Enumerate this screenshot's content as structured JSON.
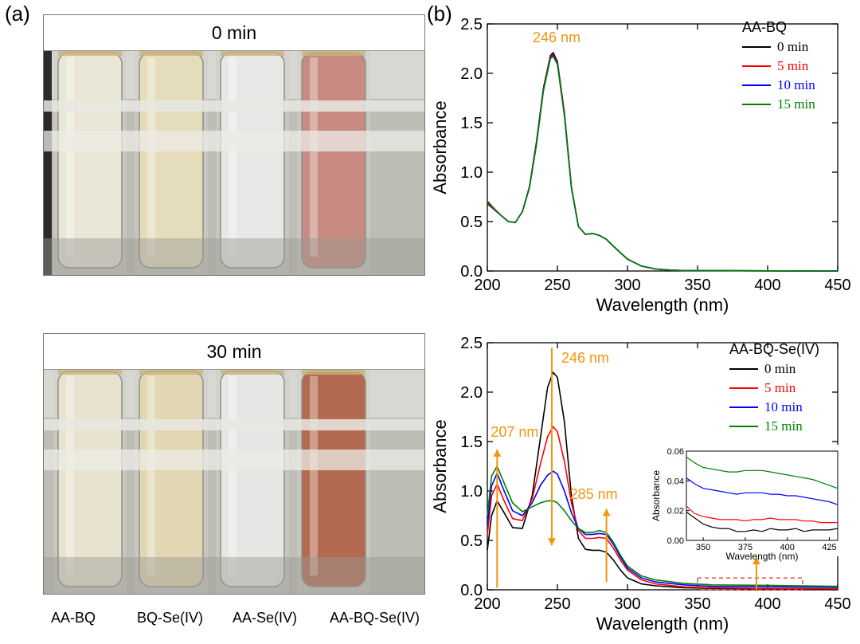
{
  "panel_a": {
    "label": "(a)",
    "photo_top": {
      "title": "0 min"
    },
    "photo_bottom": {
      "title": "30 min"
    },
    "tubes": [
      {
        "label": "AA-BQ",
        "color_top": "#e9e6d6",
        "color_bottom": "#e8e3cf"
      },
      {
        "label": "BQ-Se(IV)",
        "color_top": "#e5dcbc",
        "color_bottom": "#e2d7b2"
      },
      {
        "label": "AA-Se(IV)",
        "color_top": "#e7e8e6",
        "color_bottom": "#e6e7e5"
      },
      {
        "label": "AA-BQ-Se(IV)",
        "color_top": "#c88b82",
        "color_bottom": "#b46a50"
      }
    ]
  },
  "panel_b": {
    "label": "(b)"
  },
  "chart_data": [
    {
      "type": "line",
      "xlabel": "Wavelength (nm)",
      "ylabel": "Absorbance",
      "xlim": [
        200,
        450
      ],
      "ylim": [
        0,
        2.5
      ],
      "xticks": [
        200,
        250,
        300,
        350,
        400,
        450
      ],
      "yticks": [
        0.0,
        0.5,
        1.0,
        1.5,
        2.0,
        2.5
      ],
      "legend_title": "AA-BQ",
      "annotation": "246 nm",
      "series": [
        {
          "name": "0 min",
          "color": "#000000",
          "x": [
            200,
            205,
            210,
            215,
            220,
            225,
            230,
            235,
            240,
            245,
            247,
            250,
            255,
            260,
            265,
            270,
            275,
            280,
            285,
            290,
            300,
            310,
            320,
            330,
            340,
            360,
            400,
            450
          ],
          "y": [
            0.68,
            0.62,
            0.56,
            0.5,
            0.49,
            0.6,
            0.85,
            1.3,
            1.85,
            2.18,
            2.21,
            2.12,
            1.6,
            0.85,
            0.45,
            0.37,
            0.38,
            0.36,
            0.32,
            0.25,
            0.12,
            0.05,
            0.02,
            0.01,
            0.005,
            0.003,
            0.002,
            0.0
          ]
        },
        {
          "name": "5 min",
          "color": "#ff0000",
          "x": [
            200,
            205,
            210,
            215,
            220,
            225,
            230,
            235,
            240,
            245,
            247,
            250,
            255,
            260,
            265,
            270,
            275,
            280,
            285,
            290,
            300,
            310,
            320,
            330,
            340,
            360,
            400,
            450
          ],
          "y": [
            0.69,
            0.62,
            0.56,
            0.5,
            0.49,
            0.6,
            0.85,
            1.29,
            1.84,
            2.17,
            2.19,
            2.11,
            1.59,
            0.85,
            0.45,
            0.37,
            0.38,
            0.36,
            0.32,
            0.25,
            0.12,
            0.05,
            0.02,
            0.01,
            0.005,
            0.003,
            0.002,
            0.0
          ]
        },
        {
          "name": "10 min",
          "color": "#0000ff",
          "x": [
            200,
            205,
            210,
            215,
            220,
            225,
            230,
            235,
            240,
            245,
            247,
            250,
            255,
            260,
            265,
            270,
            275,
            280,
            285,
            290,
            300,
            310,
            320,
            330,
            340,
            360,
            400,
            450
          ],
          "y": [
            0.7,
            0.63,
            0.56,
            0.5,
            0.49,
            0.6,
            0.84,
            1.28,
            1.83,
            2.16,
            2.18,
            2.1,
            1.58,
            0.84,
            0.45,
            0.37,
            0.38,
            0.36,
            0.32,
            0.25,
            0.12,
            0.05,
            0.02,
            0.01,
            0.005,
            0.003,
            0.002,
            0.0
          ]
        },
        {
          "name": "15 min",
          "color": "#008000",
          "x": [
            200,
            205,
            210,
            215,
            220,
            225,
            230,
            235,
            240,
            245,
            247,
            250,
            255,
            260,
            265,
            270,
            275,
            280,
            285,
            290,
            300,
            310,
            320,
            330,
            340,
            360,
            400,
            450
          ],
          "y": [
            0.71,
            0.63,
            0.56,
            0.5,
            0.49,
            0.6,
            0.84,
            1.27,
            1.82,
            2.15,
            2.17,
            2.09,
            1.57,
            0.84,
            0.45,
            0.37,
            0.38,
            0.36,
            0.32,
            0.25,
            0.12,
            0.05,
            0.02,
            0.01,
            0.005,
            0.003,
            0.002,
            0.0
          ]
        }
      ]
    },
    {
      "type": "line",
      "xlabel": "Wavelength (nm)",
      "ylabel": "Absorbance",
      "xlim": [
        200,
        450
      ],
      "ylim": [
        0,
        2.5
      ],
      "xticks": [
        200,
        250,
        300,
        350,
        400,
        450
      ],
      "yticks": [
        0.0,
        0.5,
        1.0,
        1.5,
        2.0,
        2.5
      ],
      "legend_title": "AA-BQ-Se(IV)",
      "annotations": [
        {
          "text": "246 nm",
          "x": 246,
          "y": 2.2,
          "arrow": "down"
        },
        {
          "text": "207 nm",
          "x": 207,
          "y": 1.55,
          "arrow": "up"
        },
        {
          "text": "285 nm",
          "x": 285,
          "y": 0.85,
          "arrow": "up"
        }
      ],
      "series": [
        {
          "name": "0 min",
          "color": "#000000",
          "x": [
            200,
            203,
            207,
            212,
            218,
            225,
            232,
            238,
            243,
            247,
            250,
            255,
            260,
            265,
            270,
            275,
            280,
            285,
            290,
            295,
            300,
            310,
            320,
            340,
            360,
            400,
            450
          ],
          "y": [
            0.4,
            0.75,
            0.9,
            0.78,
            0.63,
            0.62,
            0.95,
            1.55,
            2.05,
            2.2,
            2.15,
            1.7,
            0.95,
            0.52,
            0.41,
            0.4,
            0.4,
            0.38,
            0.3,
            0.2,
            0.12,
            0.06,
            0.04,
            0.02,
            0.015,
            0.008,
            0.005
          ]
        },
        {
          "name": "5 min",
          "color": "#ff0000",
          "x": [
            200,
            203,
            207,
            212,
            218,
            225,
            232,
            238,
            243,
            247,
            250,
            255,
            260,
            265,
            270,
            275,
            280,
            285,
            290,
            295,
            300,
            310,
            320,
            340,
            360,
            400,
            450
          ],
          "y": [
            0.55,
            0.95,
            1.07,
            0.9,
            0.72,
            0.7,
            0.92,
            1.28,
            1.55,
            1.65,
            1.6,
            1.3,
            0.88,
            0.6,
            0.52,
            0.52,
            0.53,
            0.52,
            0.42,
            0.3,
            0.2,
            0.1,
            0.06,
            0.03,
            0.02,
            0.013,
            0.01
          ]
        },
        {
          "name": "10 min",
          "color": "#0000ff",
          "x": [
            200,
            203,
            207,
            212,
            218,
            225,
            232,
            238,
            243,
            247,
            250,
            255,
            260,
            265,
            270,
            275,
            280,
            285,
            290,
            295,
            300,
            310,
            320,
            340,
            360,
            400,
            450
          ],
          "y": [
            0.65,
            1.05,
            1.18,
            1.0,
            0.8,
            0.75,
            0.88,
            1.06,
            1.16,
            1.2,
            1.17,
            1.0,
            0.78,
            0.62,
            0.56,
            0.56,
            0.57,
            0.56,
            0.46,
            0.33,
            0.22,
            0.12,
            0.08,
            0.05,
            0.035,
            0.03,
            0.025
          ]
        },
        {
          "name": "15 min",
          "color": "#008000",
          "x": [
            200,
            203,
            207,
            212,
            218,
            225,
            232,
            238,
            243,
            247,
            250,
            255,
            260,
            265,
            270,
            275,
            280,
            285,
            290,
            295,
            300,
            310,
            320,
            340,
            360,
            400,
            450
          ],
          "y": [
            0.75,
            1.15,
            1.25,
            1.08,
            0.88,
            0.79,
            0.84,
            0.88,
            0.9,
            0.9,
            0.88,
            0.8,
            0.7,
            0.62,
            0.58,
            0.58,
            0.6,
            0.58,
            0.48,
            0.35,
            0.24,
            0.14,
            0.1,
            0.065,
            0.05,
            0.045,
            0.035
          ]
        }
      ],
      "highlight_region": {
        "x": [
          350,
          425
        ],
        "y": [
          0.0,
          0.12
        ]
      }
    },
    {
      "type": "line",
      "inset": true,
      "xlabel": "Wavelength (nm)",
      "ylabel": "Absorbance",
      "xlim": [
        340,
        430
      ],
      "ylim": [
        0.0,
        0.06
      ],
      "xticks": [
        350,
        375,
        400,
        425
      ],
      "yticks": [
        0.0,
        0.02,
        0.04,
        0.06
      ],
      "series": [
        {
          "name": "0 min",
          "color": "#000000",
          "x": [
            340,
            345,
            350,
            355,
            360,
            365,
            370,
            375,
            380,
            385,
            390,
            395,
            400,
            405,
            410,
            415,
            420,
            425,
            430
          ],
          "y": [
            0.019,
            0.015,
            0.011,
            0.009,
            0.008,
            0.008,
            0.006,
            0.006,
            0.007,
            0.006,
            0.008,
            0.007,
            0.007,
            0.008,
            0.006,
            0.007,
            0.007,
            0.007,
            0.008
          ]
        },
        {
          "name": "5 min",
          "color": "#ff0000",
          "x": [
            340,
            345,
            350,
            355,
            360,
            365,
            370,
            375,
            380,
            385,
            390,
            395,
            400,
            405,
            410,
            415,
            420,
            425,
            430
          ],
          "y": [
            0.023,
            0.018,
            0.016,
            0.015,
            0.014,
            0.014,
            0.014,
            0.013,
            0.014,
            0.014,
            0.015,
            0.014,
            0.014,
            0.014,
            0.013,
            0.013,
            0.012,
            0.012,
            0.012
          ]
        },
        {
          "name": "10 min",
          "color": "#0000ff",
          "x": [
            340,
            345,
            350,
            355,
            360,
            365,
            370,
            375,
            380,
            385,
            390,
            395,
            400,
            405,
            410,
            415,
            420,
            425,
            430
          ],
          "y": [
            0.042,
            0.038,
            0.035,
            0.034,
            0.033,
            0.032,
            0.031,
            0.032,
            0.032,
            0.032,
            0.031,
            0.031,
            0.03,
            0.03,
            0.029,
            0.028,
            0.027,
            0.026,
            0.024
          ]
        },
        {
          "name": "15 min",
          "color": "#008000",
          "x": [
            340,
            345,
            350,
            355,
            360,
            365,
            370,
            375,
            380,
            385,
            390,
            395,
            400,
            405,
            410,
            415,
            420,
            425,
            430
          ],
          "y": [
            0.056,
            0.052,
            0.049,
            0.048,
            0.047,
            0.046,
            0.046,
            0.047,
            0.047,
            0.047,
            0.046,
            0.045,
            0.044,
            0.043,
            0.042,
            0.041,
            0.039,
            0.037,
            0.035
          ]
        }
      ]
    }
  ]
}
